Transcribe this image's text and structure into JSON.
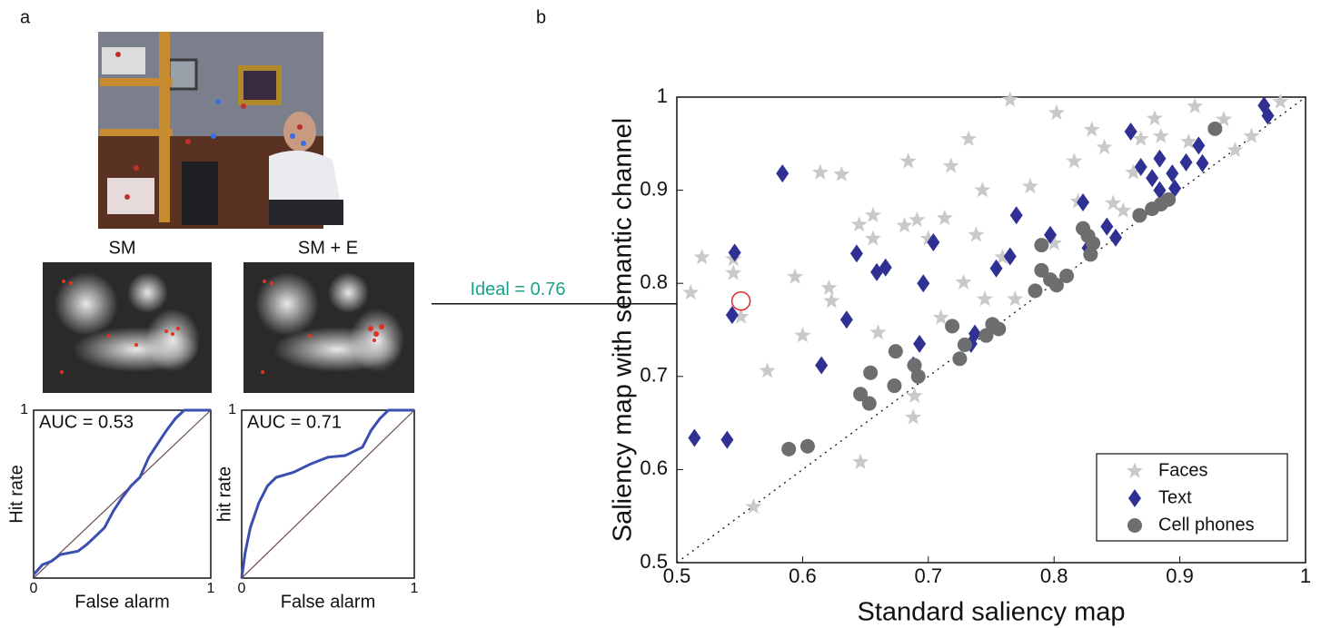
{
  "panel_labels": [
    "a",
    "b"
  ],
  "chart_data": [
    {
      "type": "line",
      "title": "SM",
      "annotation": "AUC = 0.53",
      "xlabel": "False alarm",
      "ylabel": "Hit rate",
      "xlim": [
        0,
        1
      ],
      "ylim": [
        0,
        1
      ],
      "xticks": [
        0,
        1
      ],
      "yticks": [
        1
      ],
      "x": [
        0,
        0.05,
        0.1,
        0.15,
        0.25,
        0.3,
        0.35,
        0.4,
        0.45,
        0.5,
        0.55,
        0.6,
        0.65,
        0.7,
        0.75,
        0.8,
        0.85,
        1
      ],
      "series": [
        {
          "color": "#3b4fb0",
          "values": [
            0.02,
            0.08,
            0.1,
            0.14,
            0.16,
            0.2,
            0.25,
            0.3,
            0.4,
            0.48,
            0.55,
            0.6,
            0.72,
            0.8,
            0.88,
            0.95,
            1,
            1
          ]
        }
      ]
    },
    {
      "type": "line",
      "title": "SM + E",
      "annotation": "AUC = 0.71",
      "xlabel": "False alarm",
      "ylabel": "hit rate",
      "xlim": [
        0,
        1
      ],
      "ylim": [
        0,
        1
      ],
      "xticks": [
        0,
        1
      ],
      "yticks": [
        1
      ],
      "x": [
        0,
        0.02,
        0.05,
        0.1,
        0.15,
        0.2,
        0.3,
        0.4,
        0.5,
        0.6,
        0.7,
        0.75,
        0.8,
        0.85,
        1
      ],
      "series": [
        {
          "color": "#3b4fb0",
          "values": [
            0,
            0.15,
            0.3,
            0.45,
            0.55,
            0.6,
            0.63,
            0.68,
            0.72,
            0.73,
            0.78,
            0.88,
            0.95,
            1,
            1
          ]
        }
      ]
    },
    {
      "type": "scatter",
      "xlabel": "Standard saliency map",
      "ylabel": "Saliency map with semantic channel",
      "xlim": [
        0.5,
        1
      ],
      "ylim": [
        0.5,
        1
      ],
      "xticks": [
        0.5,
        0.6,
        0.7,
        0.8,
        0.9,
        1
      ],
      "yticks": [
        0.5,
        0.6,
        0.7,
        0.8,
        0.9,
        1
      ],
      "diagonal": true,
      "legend": "lower right",
      "annotation": "Ideal = 0.76",
      "annotation_color": "#1aa38a",
      "highlight": {
        "x": 0.551,
        "y": 0.781,
        "color": "#e0242a"
      },
      "series": [
        {
          "name": "Faces",
          "marker": "star",
          "color": "#c9c9c9",
          "x": [
            0.511,
            0.52,
            0.545,
            0.545,
            0.551,
            0.561,
            0.572,
            0.594,
            0.6,
            0.614,
            0.631,
            0.621,
            0.623,
            0.645,
            0.656,
            0.656,
            0.646,
            0.66,
            0.681,
            0.684,
            0.691,
            0.7,
            0.718,
            0.732,
            0.738,
            0.743,
            0.765,
            0.759,
            0.769,
            0.781,
            0.802,
            0.816,
            0.819,
            0.83,
            0.84,
            0.847,
            0.863,
            0.869,
            0.88,
            0.885,
            0.907,
            0.912,
            0.935,
            0.944,
            0.957,
            0.98,
            0.689,
            0.688,
            0.71,
            0.728,
            0.745,
            0.8,
            0.855,
            0.713
          ],
          "values": [
            0.79,
            0.828,
            0.811,
            0.826,
            0.764,
            0.56,
            0.706,
            0.807,
            0.744,
            0.919,
            0.917,
            0.795,
            0.781,
            0.863,
            0.873,
            0.848,
            0.608,
            0.747,
            0.862,
            0.931,
            0.868,
            0.848,
            0.926,
            0.955,
            0.852,
            0.9,
            0.997,
            0.828,
            0.783,
            0.904,
            0.983,
            0.931,
            0.888,
            0.965,
            0.946,
            0.886,
            0.919,
            0.955,
            0.977,
            0.958,
            0.952,
            0.99,
            0.976,
            0.943,
            0.958,
            0.995,
            0.679,
            0.656,
            0.763,
            0.801,
            0.783,
            0.843,
            0.878,
            0.87
          ]
        },
        {
          "name": "Text",
          "marker": "diamond",
          "color": "#2e3192",
          "x": [
            0.514,
            0.54,
            0.544,
            0.546,
            0.584,
            0.615,
            0.643,
            0.635,
            0.659,
            0.666,
            0.693,
            0.688,
            0.696,
            0.704,
            0.734,
            0.737,
            0.754,
            0.765,
            0.77,
            0.797,
            0.823,
            0.827,
            0.842,
            0.849,
            0.861,
            0.869,
            0.878,
            0.884,
            0.884,
            0.894,
            0.896,
            0.905,
            0.915,
            0.918,
            0.967,
            0.97
          ],
          "values": [
            0.634,
            0.632,
            0.766,
            0.833,
            0.918,
            0.712,
            0.832,
            0.761,
            0.812,
            0.817,
            0.735,
            0.712,
            0.8,
            0.844,
            0.735,
            0.746,
            0.816,
            0.829,
            0.873,
            0.852,
            0.887,
            0.838,
            0.861,
            0.849,
            0.963,
            0.925,
            0.913,
            0.934,
            0.9,
            0.918,
            0.902,
            0.93,
            0.948,
            0.929,
            0.991,
            0.98
          ]
        },
        {
          "name": "Cell phones",
          "marker": "circle",
          "color": "#6d6e70",
          "x": [
            0.589,
            0.604,
            0.646,
            0.653,
            0.654,
            0.673,
            0.674,
            0.689,
            0.692,
            0.719,
            0.725,
            0.729,
            0.746,
            0.751,
            0.756,
            0.785,
            0.79,
            0.79,
            0.797,
            0.802,
            0.81,
            0.823,
            0.827,
            0.829,
            0.831,
            0.868,
            0.878,
            0.885,
            0.891,
            0.928
          ],
          "values": [
            0.622,
            0.625,
            0.681,
            0.671,
            0.704,
            0.69,
            0.727,
            0.712,
            0.7,
            0.754,
            0.719,
            0.734,
            0.744,
            0.756,
            0.751,
            0.792,
            0.841,
            0.814,
            0.804,
            0.798,
            0.808,
            0.859,
            0.851,
            0.831,
            0.843,
            0.873,
            0.88,
            0.885,
            0.89,
            0.966
          ]
        }
      ]
    }
  ]
}
